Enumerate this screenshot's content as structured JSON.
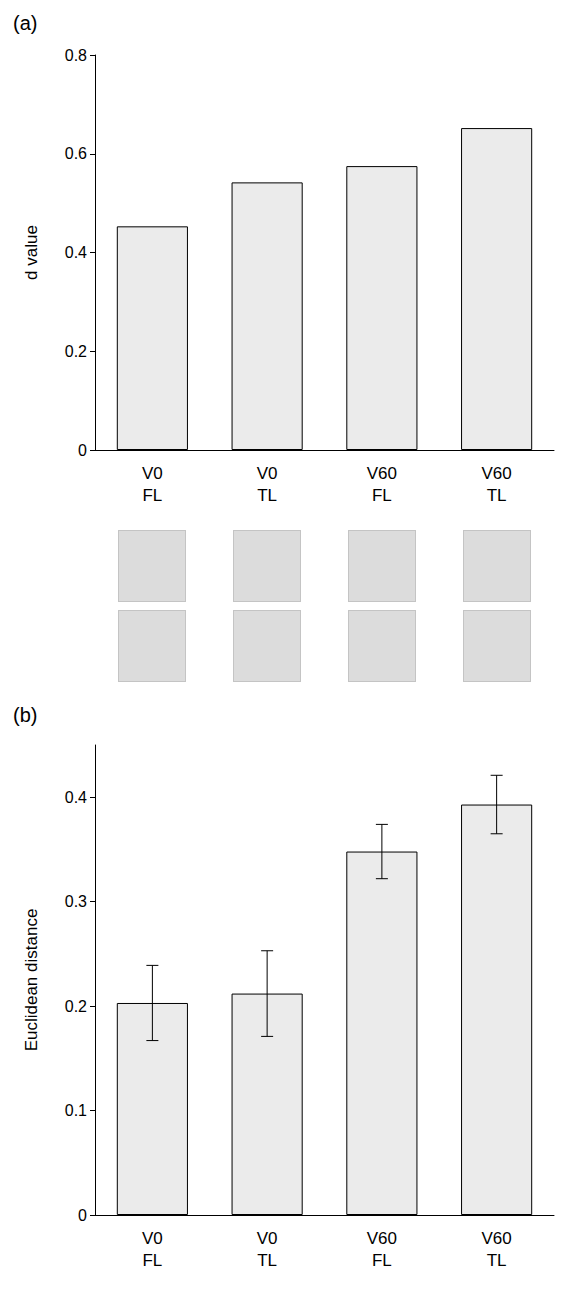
{
  "chart_data": [
    {
      "type": "bar",
      "title": "(a)",
      "y_label": "d value",
      "categories": [
        "V0\nFL",
        "V0\nTL",
        "V60\nFL",
        "V60\nTL"
      ],
      "values": [
        0.453,
        0.542,
        0.575,
        0.652
      ],
      "color": "#ebebeb",
      "ylim": [
        0,
        0.8
      ],
      "yticks": [
        0,
        0.2,
        0.4,
        0.6,
        0.8
      ],
      "grid": false
    },
    {
      "type": "bar",
      "title": "(b)",
      "y_label": "Euclidean distance",
      "categories": [
        "V0\nFL",
        "V0\nTL",
        "V60\nFL",
        "V60\nTL"
      ],
      "values": [
        0.203,
        0.212,
        0.348,
        0.393
      ],
      "errors": [
        0.036,
        0.041,
        0.026,
        0.028
      ],
      "color": "#ebebeb",
      "ylim": [
        0,
        0.45
      ],
      "yticks": [
        0,
        0.1,
        0.2,
        0.3,
        0.4
      ],
      "grid": false
    }
  ]
}
